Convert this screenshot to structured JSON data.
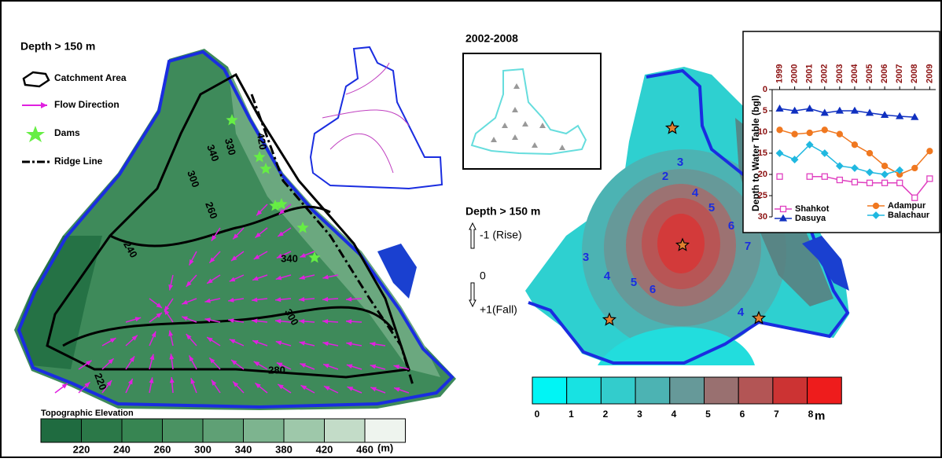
{
  "left_panel": {
    "title": "Depth > 150 m",
    "legend": [
      "Catchment Area",
      "Flow Direction",
      "Dams",
      "Ridge Line"
    ],
    "contour_labels": [
      "300",
      "340",
      "330",
      "420",
      "340",
      "300",
      "260",
      "240",
      "220",
      "280"
    ],
    "colorbar": {
      "title": "Topographic Elevation",
      "labels": [
        "220",
        "240",
        "260",
        "300",
        "340",
        "380",
        "420",
        "460"
      ],
      "unit": "(m)"
    }
  },
  "right_panel": {
    "period": "2002-2008",
    "title": "Depth > 150 m",
    "arrow_labels": [
      "-1 (Rise)",
      "0",
      "+1(Fall)"
    ],
    "contour_labels": [
      "2",
      "3",
      "4",
      "5",
      "6",
      "7",
      "3",
      "4",
      "5",
      "6",
      "4"
    ],
    "colorbar": {
      "labels": [
        "0",
        "1",
        "2",
        "3",
        "4",
        "5",
        "6",
        "7",
        "8"
      ],
      "unit": "m"
    }
  },
  "chart_data": {
    "type": "line",
    "ylabel": "Depth to Water Table (bgl)",
    "x": [
      1999,
      2000,
      2001,
      2002,
      2003,
      2004,
      2005,
      2006,
      2007,
      2008,
      2009
    ],
    "xlim": [
      1998.5,
      2009.4
    ],
    "xticks": [
      1999,
      2000,
      2001,
      2002,
      2003,
      2004,
      2005,
      2006,
      2007,
      2008,
      2009
    ],
    "ylim": [
      0,
      30
    ],
    "yticks": [
      0,
      5,
      10,
      15,
      20,
      25,
      30
    ],
    "y_inverted": true,
    "series": [
      {
        "name": "Shahkot",
        "color": "#e040c0",
        "marker": "square",
        "filled": false,
        "values": [
          20.5,
          null,
          20.5,
          20.5,
          21.3,
          21.8,
          22,
          22,
          22,
          25.5,
          21
        ]
      },
      {
        "name": "Adampur",
        "color": "#f07820",
        "marker": "circle",
        "filled": true,
        "values": [
          9.5,
          10.5,
          10.2,
          9.5,
          10.5,
          13,
          15,
          18,
          20,
          18.5,
          14.5
        ]
      },
      {
        "name": "Dasuya",
        "color": "#1030c0",
        "marker": "triangle",
        "filled": true,
        "values": [
          4.5,
          5,
          4.5,
          5.5,
          5,
          5,
          5.5,
          6,
          6.3,
          6.5,
          null
        ]
      },
      {
        "name": "Balachaur",
        "color": "#20b8e0",
        "marker": "diamond",
        "filled": true,
        "values": [
          15,
          16.5,
          13,
          15,
          18,
          18.5,
          19.5,
          20,
          19,
          null,
          null
        ]
      }
    ]
  }
}
